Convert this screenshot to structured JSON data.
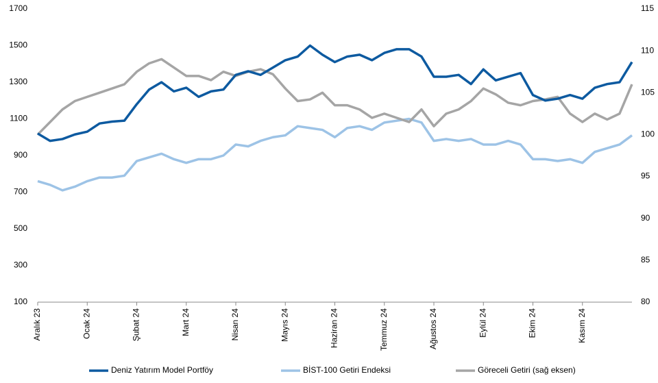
{
  "chart_data": {
    "type": "line",
    "categories": [
      "Aralık 23",
      null,
      null,
      null,
      "Ocak 24",
      null,
      null,
      null,
      "Şubat 24",
      null,
      null,
      null,
      "Mart 24",
      null,
      null,
      null,
      "Nisan 24",
      null,
      null,
      null,
      "Mayıs 24",
      null,
      null,
      null,
      "Haziran 24",
      null,
      null,
      null,
      "Temmuz 24",
      null,
      null,
      null,
      "Ağustos 24",
      null,
      null,
      null,
      "Eylül 24",
      null,
      null,
      null,
      "Ekim 24",
      null,
      null,
      null,
      "Kasım 24",
      null,
      null,
      null,
      null
    ],
    "series": [
      {
        "name": "Deniz Yatırım Model Portföy",
        "color": "#0d5aa0",
        "values": [
          1020,
          980,
          990,
          1015,
          1030,
          1075,
          1085,
          1090,
          1180,
          1260,
          1300,
          1250,
          1270,
          1220,
          1250,
          1260,
          1340,
          1360,
          1340,
          1380,
          1420,
          1440,
          1500,
          1450,
          1410,
          1440,
          1450,
          1420,
          1460,
          1480,
          1480,
          1440,
          1330,
          1330,
          1340,
          1290,
          1370,
          1310,
          1330,
          1350,
          1230,
          1200,
          1210,
          1230,
          1210,
          1270,
          1290,
          1300,
          1410
        ]
      },
      {
        "name": "BİST-100 Getiri Endeksi",
        "color": "#9dc3e6",
        "values": [
          760,
          740,
          710,
          730,
          760,
          780,
          780,
          790,
          870,
          890,
          910,
          880,
          860,
          880,
          880,
          900,
          960,
          950,
          980,
          1000,
          1010,
          1060,
          1050,
          1040,
          1000,
          1050,
          1060,
          1040,
          1080,
          1090,
          1100,
          1080,
          980,
          990,
          980,
          990,
          960,
          960,
          980,
          960,
          880,
          880,
          870,
          880,
          860,
          920,
          940,
          960,
          1010
        ]
      },
      {
        "name": "Göreceli Getiri (sağ eksen)",
        "color": "#a5a5a5",
        "axis": "y2",
        "values": [
          100,
          101.5,
          103,
          104,
          104.5,
          105,
          105.5,
          106,
          107.5,
          108.5,
          109,
          108,
          107,
          107,
          106.5,
          107.5,
          107,
          107.5,
          107.8,
          107.2,
          105.5,
          104,
          104.2,
          105,
          103.5,
          103.5,
          103,
          102,
          102.5,
          102,
          101.5,
          103,
          101,
          102.5,
          103,
          104,
          105.5,
          104.8,
          103.8,
          103.5,
          104,
          104.2,
          104.5,
          102.5,
          101.5,
          102.5,
          101.8,
          102.5,
          106
        ]
      }
    ],
    "ylim": [
      100,
      1700
    ],
    "yticks": [
      100,
      300,
      500,
      700,
      900,
      1100,
      1300,
      1500,
      1700
    ],
    "y2lim": [
      80,
      115
    ],
    "y2ticks": [
      80,
      85,
      90,
      95,
      100,
      105,
      110,
      115
    ],
    "grid": false,
    "legend": "bottom"
  }
}
